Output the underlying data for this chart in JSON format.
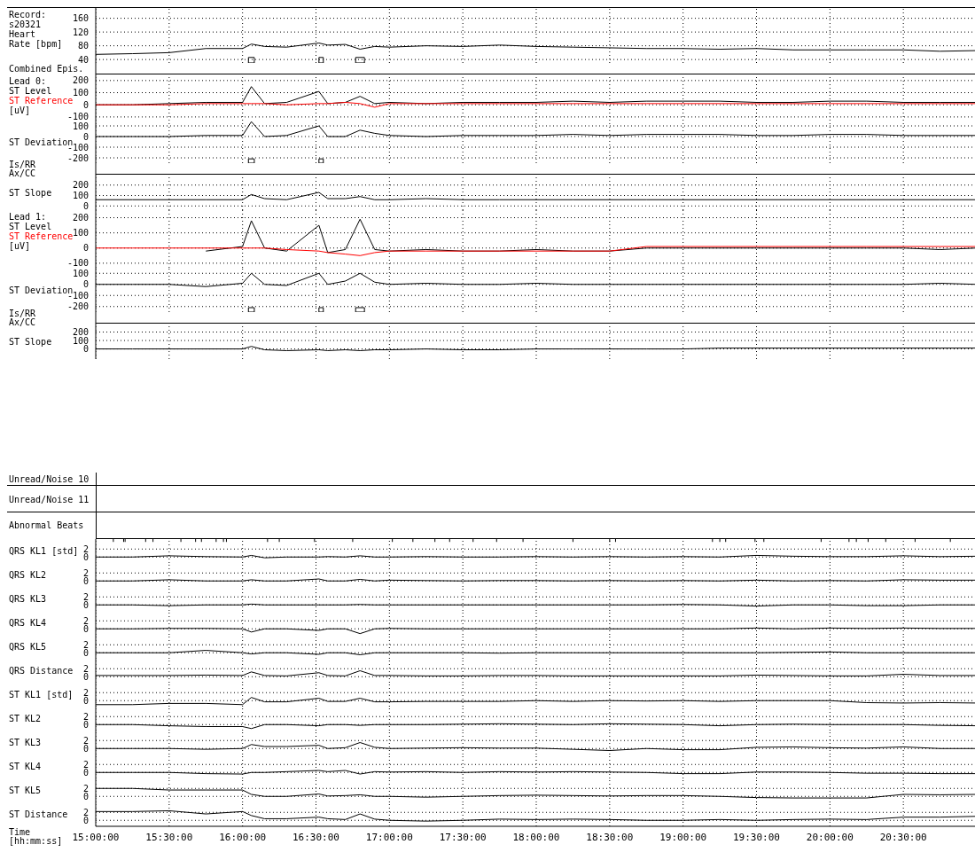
{
  "chart_data": [
    {
      "type": "line",
      "title": "Record:\ns20321",
      "ylabel": "Heart\nRate [bpm]",
      "annotations": [
        "Combined Epis."
      ],
      "xlim": [
        15,
        21
      ],
      "xticks": [
        15,
        15.5,
        16,
        16.5,
        17,
        17.5,
        18,
        18.5,
        19,
        19.5,
        20,
        20.5
      ],
      "ylim": [
        30,
        190
      ],
      "yticks": [
        40,
        80,
        120,
        160
      ],
      "grid": true,
      "tick_labels": "y",
      "bands": [
        {
          "axis": "x",
          "from": 16.04,
          "to": 16.08
        },
        {
          "axis": "x",
          "from": 16.52,
          "to": 16.55
        },
        {
          "axis": "x",
          "from": 16.77,
          "to": 16.83
        }
      ],
      "x": [
        15,
        15.25,
        15.5,
        15.75,
        16,
        16.06,
        16.15,
        16.3,
        16.52,
        16.58,
        16.7,
        16.8,
        16.9,
        17,
        17.25,
        17.5,
        17.75,
        18,
        18.25,
        18.5,
        18.75,
        19,
        19.25,
        19.5,
        19.75,
        20,
        20.25,
        20.5,
        20.75,
        21
      ],
      "series": [
        {
          "color": "#000000",
          "values": [
            55,
            57,
            60,
            72,
            72,
            85,
            78,
            76,
            88,
            82,
            84,
            70,
            78,
            76,
            80,
            78,
            82,
            78,
            76,
            74,
            72,
            72,
            70,
            72,
            68,
            68,
            68,
            68,
            64,
            66
          ]
        }
      ]
    },
    {
      "type": "line",
      "title": "Lead 0:",
      "ylabel": "[uV]",
      "legend": "left",
      "xlim": [
        15,
        21
      ],
      "xticks": [
        15,
        15.5,
        16,
        16.5,
        17,
        17.5,
        18,
        18.5,
        19,
        19.5,
        20,
        20.5
      ],
      "ylim": [
        -130,
        250
      ],
      "yticks": [
        200,
        100,
        0,
        -100
      ],
      "grid": true,
      "tick_labels": "y",
      "x": [
        15,
        15.25,
        15.5,
        15.75,
        16,
        16.06,
        16.15,
        16.3,
        16.52,
        16.58,
        16.7,
        16.8,
        16.9,
        17,
        17.25,
        17.5,
        17.75,
        18,
        18.25,
        18.5,
        18.75,
        19,
        19.25,
        19.5,
        19.75,
        20,
        20.25,
        20.5,
        20.75,
        21
      ],
      "series": [
        {
          "name": "ST Level",
          "color": "#000000",
          "values": [
            0,
            0,
            10,
            20,
            20,
            150,
            10,
            20,
            110,
            10,
            20,
            70,
            10,
            20,
            10,
            20,
            20,
            20,
            30,
            20,
            30,
            30,
            30,
            20,
            20,
            30,
            30,
            20,
            20,
            20
          ]
        },
        {
          "name": "ST Reference",
          "color": "#ff0000",
          "values": [
            0,
            0,
            0,
            10,
            10,
            10,
            10,
            0,
            10,
            10,
            20,
            10,
            -20,
            10,
            10,
            10,
            10,
            10,
            10,
            10,
            10,
            10,
            10,
            10,
            10,
            10,
            10,
            10,
            10,
            10
          ]
        }
      ]
    },
    {
      "type": "line",
      "ylabel": "ST Deviation",
      "annotations": [
        "Is/RR\nAx/CC"
      ],
      "xlim": [
        15,
        21
      ],
      "xticks": [
        15,
        15.5,
        16,
        16.5,
        17,
        17.5,
        18,
        18.5,
        19,
        19.5,
        20,
        20.5
      ],
      "ylim": [
        -250,
        150
      ],
      "yticks": [
        100,
        0,
        -100,
        -200
      ],
      "grid": true,
      "tick_labels": "y",
      "bands": [
        {
          "axis": "x",
          "from": 16.04,
          "to": 16.08
        },
        {
          "axis": "x",
          "from": 16.52,
          "to": 16.55
        }
      ],
      "x": [
        15,
        15.25,
        15.5,
        15.75,
        16,
        16.06,
        16.15,
        16.3,
        16.52,
        16.58,
        16.7,
        16.8,
        16.9,
        17,
        17.25,
        17.5,
        17.75,
        18,
        18.25,
        18.5,
        18.75,
        19,
        19.25,
        19.5,
        19.75,
        20,
        20.25,
        20.5,
        20.75,
        21
      ],
      "series": [
        {
          "color": "#000000",
          "values": [
            0,
            0,
            0,
            10,
            10,
            140,
            0,
            10,
            100,
            0,
            0,
            60,
            30,
            10,
            0,
            10,
            10,
            10,
            20,
            10,
            20,
            20,
            20,
            10,
            10,
            20,
            20,
            10,
            10,
            10
          ]
        }
      ]
    },
    {
      "type": "line",
      "ylabel": "ST Slope",
      "xlim": [
        15,
        21
      ],
      "xticks": [
        15,
        15.5,
        16,
        16.5,
        17,
        17.5,
        18,
        18.5,
        19,
        19.5,
        20,
        20.5
      ],
      "ylim": [
        -40,
        300
      ],
      "yticks": [
        200,
        100,
        0
      ],
      "grid": true,
      "tick_labels": "y",
      "x": [
        15,
        15.25,
        15.5,
        15.75,
        16,
        16.06,
        16.15,
        16.3,
        16.52,
        16.58,
        16.7,
        16.8,
        16.9,
        17,
        17.25,
        17.5,
        17.75,
        18,
        18.25,
        18.5,
        18.75,
        19,
        19.25,
        19.5,
        19.75,
        20,
        20.25,
        20.5,
        20.75,
        21
      ],
      "series": [
        {
          "color": "#000000",
          "values": [
            60,
            60,
            60,
            60,
            60,
            110,
            70,
            60,
            130,
            70,
            70,
            90,
            60,
            60,
            70,
            60,
            60,
            60,
            60,
            60,
            60,
            60,
            60,
            60,
            60,
            60,
            60,
            60,
            60,
            60
          ]
        }
      ]
    },
    {
      "type": "line",
      "title": "Lead 1:",
      "ylabel": "[uV]",
      "legend": "left",
      "xlim": [
        15,
        21
      ],
      "xticks": [
        15,
        15.5,
        16,
        16.5,
        17,
        17.5,
        18,
        18.5,
        19,
        19.5,
        20,
        20.5
      ],
      "ylim": [
        -130,
        250
      ],
      "yticks": [
        200,
        100,
        0,
        -100
      ],
      "grid": true,
      "tick_labels": "y",
      "x": [
        15,
        15.25,
        15.5,
        15.75,
        16,
        16.06,
        16.15,
        16.3,
        16.52,
        16.58,
        16.7,
        16.8,
        16.9,
        17,
        17.25,
        17.5,
        17.75,
        18,
        18.25,
        18.5,
        18.75,
        19,
        19.25,
        19.5,
        19.75,
        20,
        20.25,
        20.5,
        20.75,
        21
      ],
      "series": [
        {
          "name": "ST Level",
          "color": "#000000",
          "values": [
            null,
            null,
            null,
            -20,
            10,
            180,
            0,
            -20,
            150,
            -30,
            -10,
            190,
            -10,
            -20,
            -10,
            -20,
            -20,
            -10,
            -20,
            -20,
            0,
            0,
            0,
            0,
            0,
            0,
            0,
            0,
            -10,
            0
          ]
        },
        {
          "name": "ST Reference",
          "color": "#ff0000",
          "values": [
            0,
            0,
            0,
            0,
            0,
            0,
            0,
            -10,
            -20,
            -30,
            -40,
            -50,
            -30,
            -20,
            -20,
            -20,
            -20,
            -20,
            -20,
            -20,
            10,
            10,
            10,
            10,
            10,
            10,
            10,
            10,
            10,
            10
          ]
        }
      ]
    },
    {
      "type": "line",
      "ylabel": "ST Deviation",
      "annotations": [
        "Is/RR\nAx/CC"
      ],
      "xlim": [
        15,
        21
      ],
      "xticks": [
        15,
        15.5,
        16,
        16.5,
        17,
        17.5,
        18,
        18.5,
        19,
        19.5,
        20,
        20.5
      ],
      "ylim": [
        -250,
        150
      ],
      "yticks": [
        100,
        0,
        -100,
        -200
      ],
      "grid": true,
      "tick_labels": "y",
      "bands": [
        {
          "axis": "x",
          "from": 16.04,
          "to": 16.08
        },
        {
          "axis": "x",
          "from": 16.52,
          "to": 16.55
        },
        {
          "axis": "x",
          "from": 16.77,
          "to": 16.83
        }
      ],
      "x": [
        15,
        15.25,
        15.5,
        15.75,
        16,
        16.06,
        16.15,
        16.3,
        16.52,
        16.58,
        16.7,
        16.8,
        16.9,
        17,
        17.25,
        17.5,
        17.75,
        18,
        18.25,
        18.5,
        18.75,
        19,
        19.25,
        19.5,
        19.75,
        20,
        20.25,
        20.5,
        20.75,
        21
      ],
      "series": [
        {
          "color": "#000000",
          "values": [
            0,
            0,
            0,
            -20,
            10,
            100,
            0,
            -10,
            100,
            0,
            30,
            100,
            20,
            0,
            10,
            0,
            0,
            10,
            0,
            0,
            0,
            0,
            0,
            0,
            0,
            0,
            0,
            0,
            10,
            0
          ]
        }
      ]
    },
    {
      "type": "line",
      "ylabel": "ST Slope",
      "xlim": [
        15,
        21
      ],
      "xticks": [
        15,
        15.5,
        16,
        16.5,
        17,
        17.5,
        18,
        18.5,
        19,
        19.5,
        20,
        20.5
      ],
      "ylim": [
        -120,
        300
      ],
      "yticks": [
        200,
        100,
        0
      ],
      "grid": true,
      "tick_labels": "y",
      "x": [
        15,
        15.25,
        15.5,
        15.75,
        16,
        16.06,
        16.15,
        16.3,
        16.52,
        16.58,
        16.7,
        16.8,
        16.9,
        17,
        17.25,
        17.5,
        17.75,
        18,
        18.25,
        18.5,
        18.75,
        19,
        19.25,
        19.5,
        19.75,
        20,
        20.25,
        20.5,
        20.75,
        21
      ],
      "series": [
        {
          "color": "#000000",
          "values": [
            0,
            0,
            0,
            0,
            0,
            30,
            -10,
            -20,
            -10,
            -20,
            -10,
            -20,
            -10,
            -10,
            0,
            -10,
            -10,
            0,
            0,
            0,
            0,
            0,
            10,
            10,
            10,
            10,
            10,
            10,
            10,
            10
          ]
        }
      ]
    },
    {
      "type": "other",
      "ylabel": "Unread/Noise 10"
    },
    {
      "type": "other",
      "ylabel": "Unread/Noise 11"
    },
    {
      "type": "line",
      "ylabel": "QRS KL1 [std]",
      "annotations": [
        "Abnormal Beats"
      ],
      "xlim": [
        15,
        21
      ],
      "xticks": [
        15,
        15.5,
        16,
        16.5,
        17,
        17.5,
        18,
        18.5,
        19,
        19.5,
        20,
        20.5
      ],
      "ylim": [
        -1.5,
        4.5
      ],
      "yticks": [
        2,
        0
      ],
      "grid": true,
      "tick_labels": "y",
      "ref_lines": [
        {
          "axis": "x",
          "value": 15.12
        },
        {
          "axis": "x",
          "value": 15.19
        },
        {
          "axis": "x",
          "value": 15.2
        },
        {
          "axis": "x",
          "value": 15.34
        },
        {
          "axis": "x",
          "value": 15.39
        },
        {
          "axis": "x",
          "value": 15.58
        },
        {
          "axis": "x",
          "value": 15.68
        },
        {
          "axis": "x",
          "value": 15.72
        },
        {
          "axis": "x",
          "value": 15.82
        },
        {
          "axis": "x",
          "value": 15.87
        },
        {
          "axis": "x",
          "value": 15.89
        },
        {
          "axis": "x",
          "value": 16.17
        },
        {
          "axis": "x",
          "value": 16.25
        },
        {
          "axis": "x",
          "value": 16.49
        },
        {
          "axis": "x",
          "value": 16.75
        },
        {
          "axis": "x",
          "value": 17.02
        },
        {
          "axis": "x",
          "value": 17.16
        },
        {
          "axis": "x",
          "value": 17.31
        },
        {
          "axis": "x",
          "value": 17.41
        },
        {
          "axis": "x",
          "value": 17.57
        },
        {
          "axis": "x",
          "value": 17.73
        },
        {
          "axis": "x",
          "value": 17.91
        },
        {
          "axis": "x",
          "value": 18.25
        },
        {
          "axis": "x",
          "value": 18.5
        },
        {
          "axis": "x",
          "value": 18.54
        },
        {
          "axis": "x",
          "value": 19.2
        },
        {
          "axis": "x",
          "value": 19.25
        },
        {
          "axis": "x",
          "value": 19.29
        },
        {
          "axis": "x",
          "value": 19.49
        },
        {
          "axis": "x",
          "value": 19.55
        },
        {
          "axis": "x",
          "value": 19.94
        },
        {
          "axis": "x",
          "value": 20.13
        },
        {
          "axis": "x",
          "value": 20.18
        },
        {
          "axis": "x",
          "value": 20.26
        },
        {
          "axis": "x",
          "value": 20.38
        },
        {
          "axis": "x",
          "value": 20.58
        },
        {
          "axis": "x",
          "value": 20.82
        }
      ],
      "x": [
        15,
        15.25,
        15.5,
        15.75,
        16,
        16.06,
        16.15,
        16.3,
        16.52,
        16.58,
        16.7,
        16.8,
        16.9,
        17,
        17.25,
        17.5,
        17.75,
        18,
        18.25,
        18.5,
        18.75,
        19,
        19.25,
        19.5,
        19.75,
        20,
        20.25,
        20.5,
        20.75,
        21
      ],
      "series": [
        {
          "color": "#000000",
          "values": [
            0,
            0,
            0.3,
            0.1,
            0,
            0.4,
            -0.2,
            0,
            0,
            0.1,
            0,
            0.3,
            0,
            0,
            0.1,
            0,
            0,
            0.1,
            0,
            0.1,
            0,
            0.1,
            0,
            0.4,
            0.2,
            0.1,
            0.1,
            0.3,
            0.1,
            0.2
          ]
        }
      ]
    },
    {
      "type": "line",
      "ylabel": "QRS KL2",
      "xlim": [
        15,
        21
      ],
      "xticks": [
        15,
        15.5,
        16,
        16.5,
        17,
        17.5,
        18,
        18.5,
        19,
        19.5,
        20,
        20.5
      ],
      "ylim": [
        -1.5,
        4.5
      ],
      "yticks": [
        2,
        0
      ],
      "grid": true,
      "tick_labels": "y",
      "x": [
        15,
        15.25,
        15.5,
        15.75,
        16,
        16.06,
        16.15,
        16.3,
        16.52,
        16.58,
        16.7,
        16.8,
        16.9,
        17,
        17.25,
        17.5,
        17.75,
        18,
        18.25,
        18.5,
        18.75,
        19,
        19.25,
        19.5,
        19.75,
        20,
        20.25,
        20.5,
        20.75,
        21
      ],
      "series": [
        {
          "color": "#000000",
          "values": [
            0,
            0,
            0.3,
            0,
            0,
            0.3,
            0,
            0,
            0.5,
            0,
            0,
            0.4,
            0,
            0.2,
            0.1,
            0,
            0.1,
            0.1,
            0,
            0.1,
            0,
            0.1,
            0,
            0.2,
            0,
            0.1,
            0,
            0.3,
            0.2,
            0.2
          ]
        }
      ]
    },
    {
      "type": "line",
      "ylabel": "QRS KL3",
      "xlim": [
        15,
        21
      ],
      "xticks": [
        15,
        15.5,
        16,
        16.5,
        17,
        17.5,
        18,
        18.5,
        19,
        19.5,
        20,
        20.5
      ],
      "ylim": [
        -1.5,
        4.5
      ],
      "yticks": [
        2,
        0
      ],
      "grid": true,
      "tick_labels": "y",
      "x": [
        15,
        15.25,
        15.5,
        15.75,
        16,
        16.06,
        16.15,
        16.3,
        16.52,
        16.58,
        16.7,
        16.8,
        16.9,
        17,
        17.25,
        17.5,
        17.75,
        18,
        18.25,
        18.5,
        18.75,
        19,
        19.25,
        19.5,
        19.75,
        20,
        20.25,
        20.5,
        20.75,
        21
      ],
      "series": [
        {
          "color": "#000000",
          "values": [
            0,
            0,
            -0.2,
            0,
            0,
            0.2,
            0,
            0,
            0,
            0,
            0,
            0.1,
            0,
            0,
            0,
            0,
            0,
            0,
            0,
            0,
            0,
            0.1,
            0,
            -0.3,
            0,
            0,
            -0.2,
            -0.2,
            0,
            0
          ]
        }
      ]
    },
    {
      "type": "line",
      "ylabel": "QRS KL4",
      "xlim": [
        15,
        21
      ],
      "xticks": [
        15,
        15.5,
        16,
        16.5,
        17,
        17.5,
        18,
        18.5,
        19,
        19.5,
        20,
        20.5
      ],
      "ylim": [
        -1.5,
        4.5
      ],
      "yticks": [
        2,
        0
      ],
      "grid": true,
      "tick_labels": "y",
      "x": [
        15,
        15.25,
        15.5,
        15.75,
        16,
        16.06,
        16.15,
        16.3,
        16.52,
        16.58,
        16.7,
        16.8,
        16.9,
        17,
        17.25,
        17.5,
        17.75,
        18,
        18.25,
        18.5,
        18.75,
        19,
        19.25,
        19.5,
        19.75,
        20,
        20.25,
        20.5,
        20.75,
        21
      ],
      "series": [
        {
          "color": "#000000",
          "values": [
            0,
            0,
            0.1,
            0.1,
            0,
            -0.8,
            0,
            0,
            -0.4,
            0,
            0,
            -1.2,
            0,
            0.1,
            0,
            0,
            0,
            0,
            0,
            0,
            0,
            0,
            0,
            0.2,
            0,
            0.2,
            0.1,
            0.2,
            0.1,
            0.1
          ]
        }
      ]
    },
    {
      "type": "line",
      "ylabel": "QRS KL5",
      "xlim": [
        15,
        21
      ],
      "xticks": [
        15,
        15.5,
        16,
        16.5,
        17,
        17.5,
        18,
        18.5,
        19,
        19.5,
        20,
        20.5
      ],
      "ylim": [
        -1.5,
        4.5
      ],
      "yticks": [
        2,
        0
      ],
      "grid": true,
      "tick_labels": "y",
      "x": [
        15,
        15.25,
        15.5,
        15.75,
        16,
        16.06,
        16.15,
        16.3,
        16.52,
        16.58,
        16.7,
        16.8,
        16.9,
        17,
        17.25,
        17.5,
        17.75,
        18,
        18.25,
        18.5,
        18.75,
        19,
        19.25,
        19.5,
        19.75,
        20,
        20.25,
        20.5,
        20.75,
        21
      ],
      "series": [
        {
          "color": "#000000",
          "values": [
            0,
            0,
            0,
            0.6,
            0,
            -0.3,
            0,
            0,
            -0.4,
            0,
            0,
            -0.5,
            0,
            0,
            0,
            0,
            -0.1,
            0,
            0,
            0,
            0,
            0,
            0,
            0,
            0.1,
            0.2,
            0,
            0,
            0,
            0
          ]
        }
      ]
    },
    {
      "type": "line",
      "ylabel": "QRS Distance",
      "xlim": [
        15,
        21
      ],
      "xticks": [
        15,
        15.5,
        16,
        16.5,
        17,
        17.5,
        18,
        18.5,
        19,
        19.5,
        20,
        20.5
      ],
      "ylim": [
        -1.5,
        4.5
      ],
      "yticks": [
        2,
        0
      ],
      "grid": true,
      "tick_labels": "y",
      "x": [
        15,
        15.25,
        15.5,
        15.75,
        16,
        16.06,
        16.15,
        16.3,
        16.52,
        16.58,
        16.7,
        16.8,
        16.9,
        17,
        17.25,
        17.5,
        17.75,
        18,
        18.25,
        18.5,
        18.75,
        19,
        19.25,
        19.5,
        19.75,
        20,
        20.25,
        20.5,
        20.75,
        21
      ],
      "series": [
        {
          "color": "#000000",
          "values": [
            0.3,
            0.3,
            0.3,
            0.4,
            0.3,
            1.2,
            0.3,
            0.2,
            1,
            0.3,
            0.2,
            1.5,
            0.3,
            0.3,
            0.2,
            0.2,
            0.3,
            0.3,
            0.2,
            0.2,
            0.2,
            0.2,
            0.2,
            0.4,
            0.3,
            0.2,
            0.2,
            0.6,
            0.3,
            0.3
          ]
        }
      ]
    },
    {
      "type": "line",
      "ylabel": "ST KL1 [std]",
      "xlim": [
        15,
        21
      ],
      "xticks": [
        15,
        15.5,
        16,
        16.5,
        17,
        17.5,
        18,
        18.5,
        19,
        19.5,
        20,
        20.5
      ],
      "ylim": [
        -1.5,
        4.5
      ],
      "yticks": [
        2,
        0
      ],
      "grid": true,
      "tick_labels": "y",
      "x": [
        15,
        15.25,
        15.5,
        15.75,
        16,
        16.06,
        16.15,
        16.3,
        16.52,
        16.58,
        16.7,
        16.8,
        16.9,
        17,
        17.25,
        17.5,
        17.75,
        18,
        18.25,
        18.5,
        18.75,
        19,
        19.25,
        19.5,
        19.75,
        20,
        20.25,
        20.5,
        20.75,
        21
      ],
      "series": [
        {
          "color": "#000000",
          "values": [
            -1,
            -1,
            -0.7,
            -0.7,
            -1,
            0.8,
            -0.3,
            -0.3,
            0.6,
            -0.2,
            -0.2,
            0.6,
            -0.3,
            -0.3,
            -0.2,
            -0.2,
            -0.2,
            0,
            -0.2,
            0,
            -0.1,
            0,
            -0.2,
            0,
            0,
            0,
            -0.5,
            -0.6,
            -0.5,
            -0.6
          ]
        }
      ]
    },
    {
      "type": "line",
      "ylabel": "ST KL2",
      "xlim": [
        15,
        21
      ],
      "xticks": [
        15,
        15.5,
        16,
        16.5,
        17,
        17.5,
        18,
        18.5,
        19,
        19.5,
        20,
        20.5
      ],
      "ylim": [
        -1.5,
        4.5
      ],
      "yticks": [
        2,
        0
      ],
      "grid": true,
      "tick_labels": "y",
      "x": [
        15,
        15.25,
        15.5,
        15.75,
        16,
        16.06,
        16.15,
        16.3,
        16.52,
        16.58,
        16.7,
        16.8,
        16.9,
        17,
        17.25,
        17.5,
        17.75,
        18,
        18.25,
        18.5,
        18.75,
        19,
        19.25,
        19.5,
        19.75,
        20,
        20.25,
        20.5,
        20.75,
        21
      ],
      "series": [
        {
          "color": "#000000",
          "values": [
            0,
            0,
            -0.3,
            -0.5,
            -0.5,
            -1,
            0,
            0,
            -0.3,
            0,
            0,
            -0.2,
            0,
            0,
            0,
            0.1,
            0.2,
            0.1,
            0,
            0.2,
            0.1,
            0,
            -0.3,
            0,
            0.1,
            0,
            0,
            0,
            -0.2,
            -0.3
          ]
        }
      ]
    },
    {
      "type": "line",
      "ylabel": "ST KL3",
      "xlim": [
        15,
        21
      ],
      "xticks": [
        15,
        15.5,
        16,
        16.5,
        17,
        17.5,
        18,
        18.5,
        19,
        19.5,
        20,
        20.5
      ],
      "ylim": [
        -1.5,
        4.5
      ],
      "yticks": [
        2,
        0
      ],
      "grid": true,
      "tick_labels": "y",
      "x": [
        15,
        15.25,
        15.5,
        15.75,
        16,
        16.06,
        16.15,
        16.3,
        16.52,
        16.58,
        16.7,
        16.8,
        16.9,
        17,
        17.25,
        17.5,
        17.75,
        18,
        18.25,
        18.5,
        18.75,
        19,
        19.25,
        19.5,
        19.75,
        20,
        20.25,
        20.5,
        20.75,
        21
      ],
      "series": [
        {
          "color": "#000000",
          "values": [
            0,
            0,
            0,
            -0.2,
            0,
            1,
            0.5,
            0.5,
            0.8,
            0,
            0.2,
            1.5,
            0.3,
            0,
            0.1,
            0.2,
            0.1,
            0.1,
            -0.2,
            -0.5,
            0,
            -0.3,
            -0.3,
            0.3,
            0.4,
            0.2,
            0.1,
            0.4,
            0,
            0
          ]
        }
      ]
    },
    {
      "type": "line",
      "ylabel": "ST KL4",
      "xlim": [
        15,
        21
      ],
      "xticks": [
        15,
        15.5,
        16,
        16.5,
        17,
        17.5,
        18,
        18.5,
        19,
        19.5,
        20,
        20.5
      ],
      "ylim": [
        -1.5,
        4.5
      ],
      "yticks": [
        2,
        0
      ],
      "grid": true,
      "tick_labels": "y",
      "x": [
        15,
        15.25,
        15.5,
        15.75,
        16,
        16.06,
        16.15,
        16.3,
        16.52,
        16.58,
        16.7,
        16.8,
        16.9,
        17,
        17.25,
        17.5,
        17.75,
        18,
        18.25,
        18.5,
        18.75,
        19,
        19.25,
        19.5,
        19.75,
        20,
        20.25,
        20.5,
        20.75,
        21
      ],
      "series": [
        {
          "color": "#000000",
          "values": [
            0,
            0,
            0,
            -0.3,
            -0.4,
            0,
            0,
            0.2,
            0.5,
            0.2,
            0.5,
            -0.4,
            0.2,
            0.1,
            0.2,
            0,
            0.2,
            0.1,
            0.2,
            0.1,
            0,
            -0.3,
            -0.3,
            0.1,
            0.1,
            0,
            -0.2,
            -0.2,
            -0.3,
            -0.3
          ]
        }
      ]
    },
    {
      "type": "line",
      "ylabel": "ST KL5",
      "xlim": [
        15,
        21
      ],
      "xticks": [
        15,
        15.5,
        16,
        16.5,
        17,
        17.5,
        18,
        18.5,
        19,
        19.5,
        20,
        20.5
      ],
      "ylim": [
        -1.5,
        4.5
      ],
      "yticks": [
        2,
        0
      ],
      "grid": true,
      "tick_labels": "y",
      "x": [
        15,
        15.25,
        15.5,
        15.75,
        16,
        16.06,
        16.15,
        16.3,
        16.52,
        16.58,
        16.7,
        16.8,
        16.9,
        17,
        17.25,
        17.5,
        17.75,
        18,
        18.25,
        18.5,
        18.75,
        19,
        19.25,
        19.5,
        19.75,
        20,
        20.25,
        20.5,
        20.75,
        21
      ],
      "series": [
        {
          "color": "#000000",
          "values": [
            2,
            2,
            1.6,
            1.6,
            1.6,
            0.5,
            0,
            0,
            0.6,
            0.1,
            0.2,
            0.4,
            0,
            0,
            -0.2,
            0,
            0.2,
            0.3,
            0.2,
            0.1,
            0.2,
            0.2,
            0,
            -0.3,
            -0.4,
            -0.4,
            -0.4,
            0.5,
            0.4,
            0.5
          ]
        }
      ]
    },
    {
      "type": "line",
      "ylabel": "ST Distance",
      "xlabel": "Time\n[hh:mm:ss]",
      "xlim": [
        15,
        21
      ],
      "xticks": [
        {
          "value": 15,
          "label": "15:00:00"
        },
        {
          "value": 15.5,
          "label": "15:30:00"
        },
        {
          "value": 16,
          "label": "16:00:00"
        },
        {
          "value": 16.5,
          "label": "16:30:00"
        },
        {
          "value": 17,
          "label": "17:00:00"
        },
        {
          "value": 17.5,
          "label": "17:30:00"
        },
        {
          "value": 18,
          "label": "18:00:00"
        },
        {
          "value": 18.5,
          "label": "18:30:00"
        },
        {
          "value": 19,
          "label": "19:00:00"
        },
        {
          "value": 19.5,
          "label": "19:30:00"
        },
        {
          "value": 20,
          "label": "20:00:00"
        },
        {
          "value": 20.5,
          "label": "20:30:00"
        }
      ],
      "ylim": [
        -1.5,
        4.5
      ],
      "yticks": [
        2,
        0
      ],
      "grid": true,
      "x": [
        15,
        15.25,
        15.5,
        15.75,
        16,
        16.06,
        16.15,
        16.3,
        16.52,
        16.58,
        16.7,
        16.8,
        16.9,
        17,
        17.25,
        17.5,
        17.75,
        18,
        18.25,
        18.5,
        18.75,
        19,
        19.25,
        19.5,
        19.75,
        20,
        20.25,
        20.5,
        20.75,
        21
      ],
      "series": [
        {
          "color": "#000000",
          "values": [
            2.2,
            2.2,
            2.4,
            1.6,
            2.2,
            1.2,
            0.4,
            0.4,
            0.8,
            0.4,
            0.2,
            1.6,
            0.3,
            0,
            -0.2,
            0,
            0.3,
            0.2,
            0.3,
            0.2,
            0,
            0,
            0.2,
            0,
            0.2,
            0.3,
            0.2,
            0.8,
            0.8,
            1
          ]
        }
      ]
    }
  ]
}
